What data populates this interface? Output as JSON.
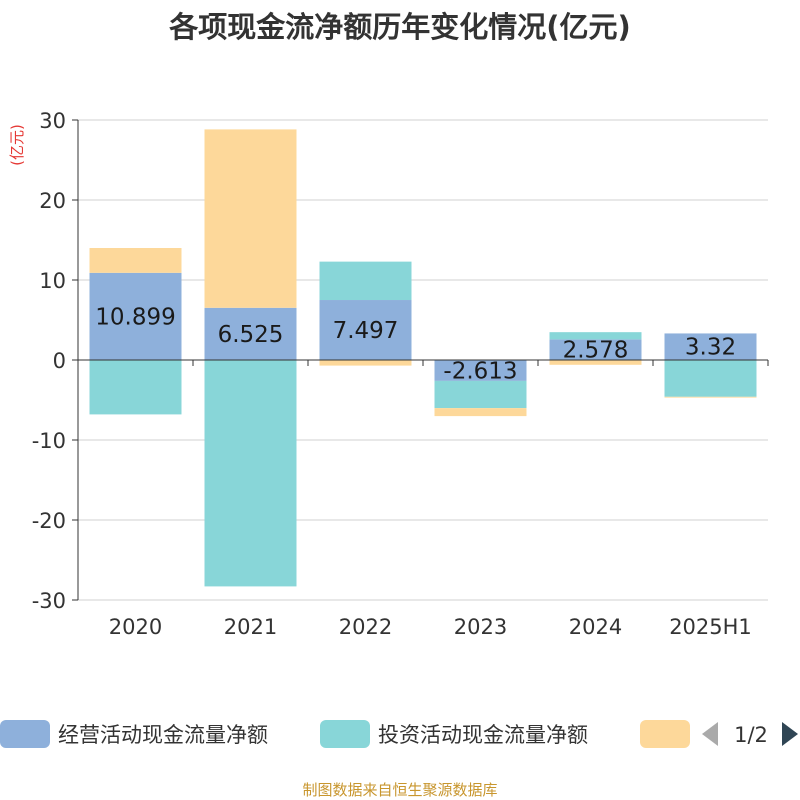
{
  "chart_data": {
    "type": "bar",
    "stacked": true,
    "title": "各项现金流净额历年变化情况(亿元)",
    "ylabel": "(亿元)",
    "categories": [
      "2020",
      "2021",
      "2022",
      "2023",
      "2024",
      "2025H1"
    ],
    "ylim": [
      -30,
      30
    ],
    "yticks": [
      "30",
      "20",
      "10",
      "0",
      "-10",
      "-20",
      "-30"
    ],
    "ytick_values": [
      30,
      20,
      10,
      0,
      -10,
      -20,
      -30
    ],
    "grid": true,
    "legend_position": "bottom",
    "series": [
      {
        "name": "经营活动现金流量净额",
        "color": "#8eb0db",
        "values": [
          10.899,
          6.525,
          7.497,
          -2.613,
          2.578,
          3.32
        ],
        "labels": [
          "10.899",
          "6.525",
          "7.497",
          "-2.613",
          "2.578",
          "3.32"
        ]
      },
      {
        "name": "投资活动现金流量净额",
        "color": "#88d6d8",
        "values": [
          -6.8,
          -28.3,
          4.8,
          -3.4,
          0.9,
          -4.6
        ]
      },
      {
        "name": "",
        "color": "#fdd89a",
        "values": [
          3.1,
          22.3,
          -0.7,
          -1.0,
          -0.6,
          -0.1
        ]
      }
    ],
    "legend_page": "1/2"
  },
  "source": "制图数据来自恒生聚源数据库",
  "colors": {
    "title": "#333333",
    "axis_text": "#333333",
    "unit_text": "#e53935",
    "grid": "#d0d0d0",
    "source_text": "#c8962e",
    "pager_active": "#2f4554",
    "pager_inactive": "#aaaaaa"
  }
}
